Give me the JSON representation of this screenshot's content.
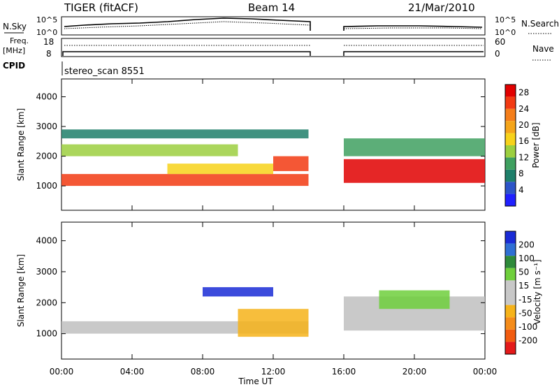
{
  "header": {
    "title": "TIGER (fitACF)",
    "beam": "Beam 14",
    "date": "21/Mar/2010"
  },
  "colors": {
    "power_scale": [
      "#2020ff",
      "#2c54c8",
      "#1e7f6a",
      "#3fa060",
      "#9ccf3f",
      "#f7d21a",
      "#f5a51a",
      "#f57e1a",
      "#f23a12",
      "#e10000"
    ],
    "velocity_scale": [
      "#1a2bd6",
      "#2f6fd4",
      "#2e8a3a",
      "#6fcf3c",
      "#c8c8c8",
      "#c8c8c8",
      "#f6b31a",
      "#f58c1a",
      "#f25c10",
      "#e41a1a"
    ],
    "scatter_gray": "#c0c0c0"
  },
  "top_panels": {
    "nsky_label": "N.Sky",
    "nsearch_label": "N.Search",
    "count_ticks_left": [
      "10^5",
      "10^0"
    ],
    "count_ticks_right": [
      "10^5",
      "10^0"
    ],
    "freq_label": "Freq.",
    "freq_unit": "[MHz]",
    "freq_ticks": [
      "18",
      "8"
    ],
    "nave_label": "Nave",
    "nave_ticks": [
      "60",
      "0"
    ],
    "cpid_label": "CPID",
    "cpid_value": "stereo_scan 8551"
  },
  "chart_data": [
    {
      "type": "heatmap",
      "title": "",
      "xlabel": "Time UT",
      "ylabel": "Slant Range [km]",
      "x_ticks": [
        "00:00",
        "04:00",
        "08:00",
        "12:00",
        "16:00",
        "20:00",
        "00:00"
      ],
      "xlim_hours": [
        0,
        24
      ],
      "y_ticks": [
        1000,
        2000,
        3000,
        4000
      ],
      "ylim": [
        180,
        4600
      ],
      "data_gap_hours": [
        14,
        16
      ],
      "colorbar_label": "Power [dB]",
      "colorbar_ticks": [
        4,
        8,
        12,
        16,
        20,
        24,
        28
      ],
      "colorbar_range": [
        0,
        30
      ],
      "bands": [
        {
          "t0": 0,
          "t1": 14,
          "range_start": 1000,
          "range_end": 1400,
          "level": 26
        },
        {
          "t0": 6,
          "t1": 12,
          "range_start": 1400,
          "range_end": 1750,
          "level": 17
        },
        {
          "t0": 12,
          "t1": 14,
          "range_start": 1500,
          "range_end": 2000,
          "level": 24
        },
        {
          "t0": 0,
          "t1": 10,
          "range_start": 2000,
          "range_end": 2400,
          "level": 14
        },
        {
          "t0": 0,
          "t1": 14,
          "range_start": 2600,
          "range_end": 2900,
          "level": 7
        },
        {
          "t0": 16,
          "t1": 24,
          "range_start": 1100,
          "range_end": 1900,
          "level": 27
        },
        {
          "t0": 16,
          "t1": 24,
          "range_start": 2000,
          "range_end": 2600,
          "level": 10
        }
      ]
    },
    {
      "type": "heatmap",
      "title": "",
      "xlabel": "Time UT",
      "ylabel": "Slant Range [km]",
      "x_ticks": [
        "00:00",
        "04:00",
        "08:00",
        "12:00",
        "16:00",
        "20:00",
        "00:00"
      ],
      "xlim_hours": [
        0,
        24
      ],
      "y_ticks": [
        1000,
        2000,
        3000,
        4000
      ],
      "ylim": [
        180,
        4600
      ],
      "data_gap_hours": [
        14,
        16
      ],
      "colorbar_label": "Velocity [m s⁻¹]",
      "colorbar_ticks": [
        200,
        100,
        50,
        15,
        -15,
        -50,
        -100,
        -200
      ],
      "bands": [
        {
          "t0": 0,
          "t1": 14,
          "range_start": 1000,
          "range_end": 1400,
          "velocity": 0
        },
        {
          "t0": 8,
          "t1": 12,
          "range_start": 2200,
          "range_end": 2500,
          "velocity": 180
        },
        {
          "t0": 10,
          "t1": 14,
          "range_start": 900,
          "range_end": 1800,
          "velocity": -60
        },
        {
          "t0": 16,
          "t1": 24,
          "range_start": 1100,
          "range_end": 2200,
          "velocity": 0
        },
        {
          "t0": 18,
          "t1": 22,
          "range_start": 1800,
          "range_end": 2400,
          "velocity": 40
        }
      ]
    }
  ]
}
